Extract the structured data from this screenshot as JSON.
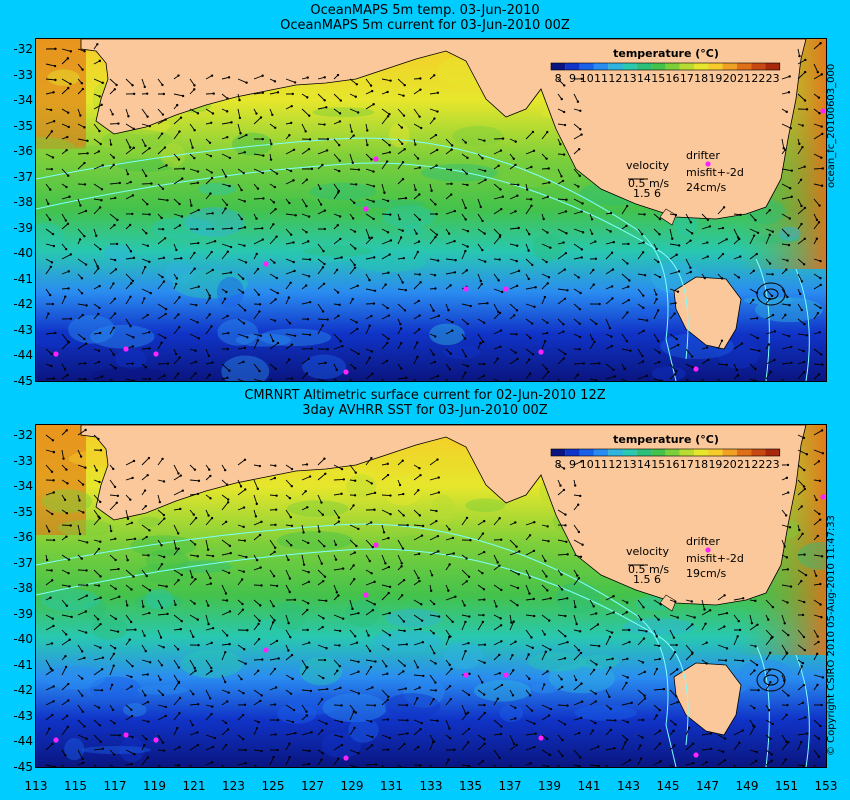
{
  "colors": {
    "background": "#00ccff",
    "land": "#fac89a",
    "arrows": "#000000",
    "contours": "#7fffff",
    "drifters": "#ff22ff"
  },
  "panels": [
    {
      "title_line1": "OceanMAPS 5m temp. 03-Jun-2010",
      "title_line2": "OceanMAPS 5m current for 03-Jun-2010 00Z",
      "legend_title": "temperature (°C)",
      "velocity_label": "velocity",
      "velocity_value": "0.5 m/s",
      "velocity_scale": "1.5 6",
      "drifter_label": "drifter",
      "misfit_label": "misfit+-2d",
      "misfit_value": "24cm/s",
      "side_label": "ocean_fc_20100603_000"
    },
    {
      "title_line1": "CMRNRT Altimetric surface current for 02-Jun-2010 12Z",
      "title_line2": "3day AVHRR SST for 03-Jun-2010 00Z",
      "legend_title": "temperature (°C)",
      "velocity_label": "velocity",
      "velocity_value": "0.5 m/s",
      "velocity_scale": "1.5 6",
      "drifter_label": "drifter",
      "misfit_label": "misfit+-2d",
      "misfit_value": "19cm/s",
      "side_label": "© Copyright CSIRO 2010   05-Aug-2010 11:47:33"
    }
  ],
  "legend_ticks": [
    "8",
    "9",
    "10",
    "11",
    "12",
    "13",
    "14",
    "15",
    "16",
    "17",
    "18",
    "19",
    "20",
    "21",
    "22",
    "23"
  ],
  "legend_colors": [
    "#0a1580",
    "#1034c8",
    "#1a60e8",
    "#2a8cf0",
    "#2fb4e0",
    "#29c8b0",
    "#2cbf7a",
    "#43c24c",
    "#7ccf3a",
    "#b8dc32",
    "#e6e62c",
    "#f6cc28",
    "#f0a022",
    "#e07018",
    "#c84812",
    "#a8280c"
  ],
  "lat_labels": [
    "-32",
    "-33",
    "-34",
    "-35",
    "-36",
    "-37",
    "-38",
    "-39",
    "-40",
    "-41",
    "-42",
    "-43",
    "-44",
    "-45"
  ],
  "lon_labels": [
    "113",
    "115",
    "117",
    "119",
    "121",
    "123",
    "125",
    "127",
    "129",
    "131",
    "133",
    "135",
    "137",
    "139",
    "141",
    "143",
    "145",
    "147",
    "149",
    "151",
    "153"
  ]
}
